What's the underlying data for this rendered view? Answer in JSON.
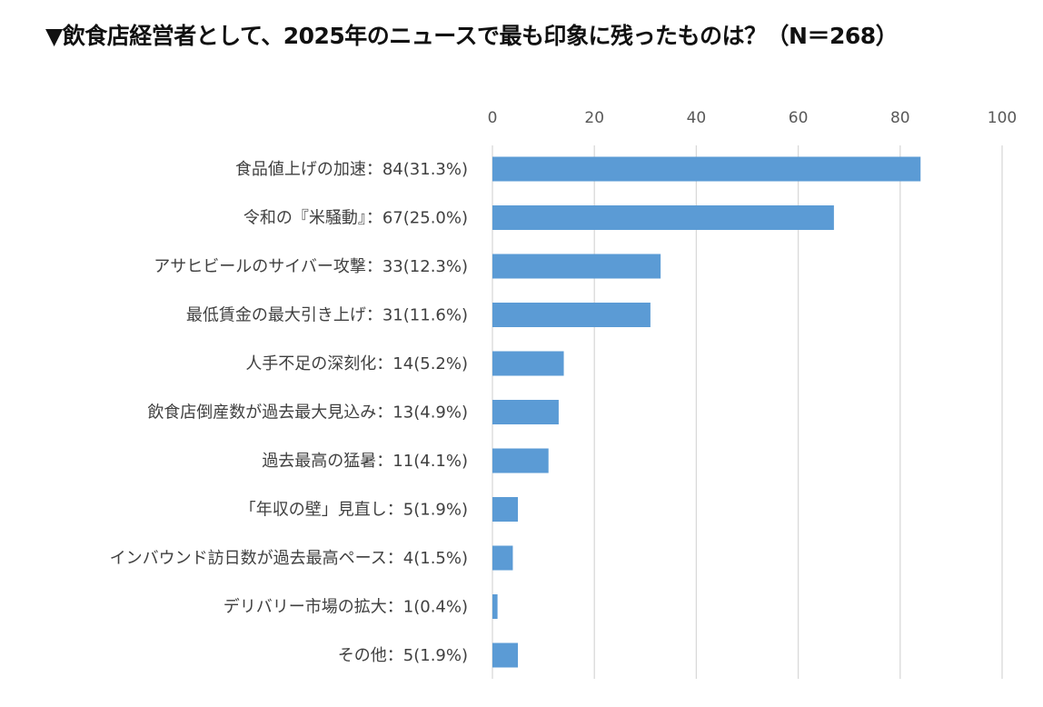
{
  "chart_data": {
    "type": "bar",
    "orientation": "horizontal",
    "title": "▼飲食店経営者として、2025年のニュースで最も印象に残ったものは？（N＝268）",
    "categories": [
      "食品値上げの加速：84(31.3%)",
      "令和の『米騒動』：67(25.0%)",
      "アサヒビールのサイバー攻撃：33(12.3%)",
      "最低賃金の最大引き上げ：31(11.6%)",
      "人手不足の深刻化：14(5.2%)",
      "飲食店倒産数が過去最大見込み：13(4.9%)",
      "過去最高の猛暑：11(4.1%)",
      "「年収の壁」見直し：5(1.9%)",
      "インバウンド訪日数が過去最高ペース：4(1.5%)",
      "デリバリー市場の拡大：1(0.4%)",
      "その他：5(1.9%)"
    ],
    "values": [
      84,
      67,
      33,
      31,
      14,
      13,
      11,
      5,
      4,
      1,
      5
    ],
    "xlim": [
      0,
      100
    ],
    "x_ticks": [
      "0",
      "20",
      "40",
      "60",
      "80",
      "100"
    ],
    "x_axis_position": "top",
    "grid": true,
    "bar_color": "#5B9BD5",
    "grid_color": "#D9D9D9"
  }
}
